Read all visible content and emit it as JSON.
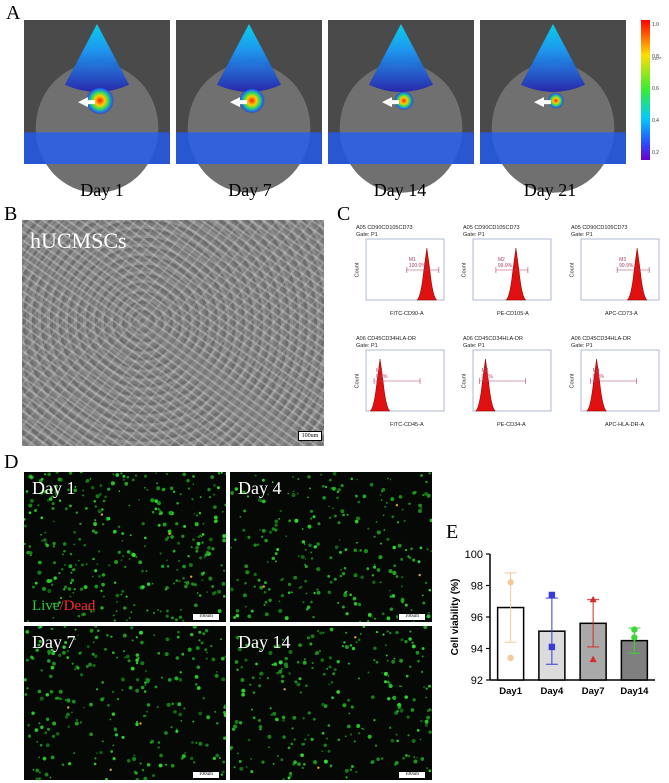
{
  "panels": {
    "a": "A",
    "b": "B",
    "c": "C",
    "d": "D",
    "e": "E"
  },
  "ivis": {
    "days": [
      "Day 1",
      "Day 7",
      "Day 14",
      "Day 21"
    ],
    "signal_level": [
      1.0,
      0.85,
      0.45,
      0.25
    ],
    "colorbar_labels": [
      "1.0",
      "0.8",
      "0.6",
      "0.4",
      "0.2"
    ],
    "colorbar_unit": "x10¹⁰"
  },
  "micrograph": {
    "cell_label": "hUCMSCs",
    "scale_text": "100um"
  },
  "flow": {
    "y_label": "Count",
    "plots": [
      {
        "title": "A05 CD90CD105CD73",
        "gate": "Gate: P1",
        "gate_label": "M1",
        "pct": "100.0%",
        "x_label": "FITC-CD90-A",
        "peak": 0.78
      },
      {
        "title": "A05 CD90CD105CD73",
        "gate": "Gate: P1",
        "gate_label": "M2",
        "pct": "99.9%",
        "x_label": "PE-CD105-A",
        "peak": 0.55
      },
      {
        "title": "A05 CD90CD105CD73",
        "gate": "Gate: P1",
        "gate_label": "M3",
        "pct": "99.9%",
        "x_label": "APC-CD73-A",
        "peak": 0.72
      },
      {
        "title": "A06 CD45CD34HLA-DR",
        "gate": "Gate: P1",
        "gate_label": "M1",
        "pct": "0.2%",
        "x_label": "FITC-CD45-A",
        "peak": 0.18
      },
      {
        "title": "A06 CD45CD34HLA-DR",
        "gate": "Gate: P1",
        "gate_label": "M2",
        "pct": "0.2%",
        "x_label": "PE-CD34-A",
        "peak": 0.16
      },
      {
        "title": "A06 CD45CD34HLA-DR",
        "gate": "Gate: P1",
        "gate_label": "M3",
        "pct": "0.2%",
        "x_label": "APC-HLA-DR-A",
        "peak": 0.2
      }
    ]
  },
  "fluorescence": {
    "days": [
      "Day 1",
      "Day 4",
      "Day 7",
      "Day 14"
    ],
    "live_label": "Live",
    "slash": "/",
    "dead_label": "Dead",
    "scale_text": "100um"
  },
  "chart_data": {
    "type": "bar",
    "categories": [
      "Day1",
      "Day4",
      "Day7",
      "Day14"
    ],
    "values": [
      96.6,
      95.1,
      95.6,
      94.5
    ],
    "errors": [
      2.2,
      2.1,
      1.5,
      0.8
    ],
    "points": [
      [
        98.2,
        93.4
      ],
      [
        97.4,
        94.1
      ],
      [
        97.1,
        93.3
      ],
      [
        94.7,
        95.2
      ]
    ],
    "bar_colors": [
      "#ffffff",
      "#dcdcdc",
      "#a9a9a9",
      "#7f7f7f"
    ],
    "point_colors": [
      "#f5c99a",
      "#3a3ad6",
      "#d62a2a",
      "#3ad63a"
    ],
    "ylabel": "Cell viability (%)",
    "xlabel": "",
    "ylim": [
      92,
      100
    ],
    "yticks": [
      "92",
      "94",
      "96",
      "98",
      "100"
    ]
  }
}
